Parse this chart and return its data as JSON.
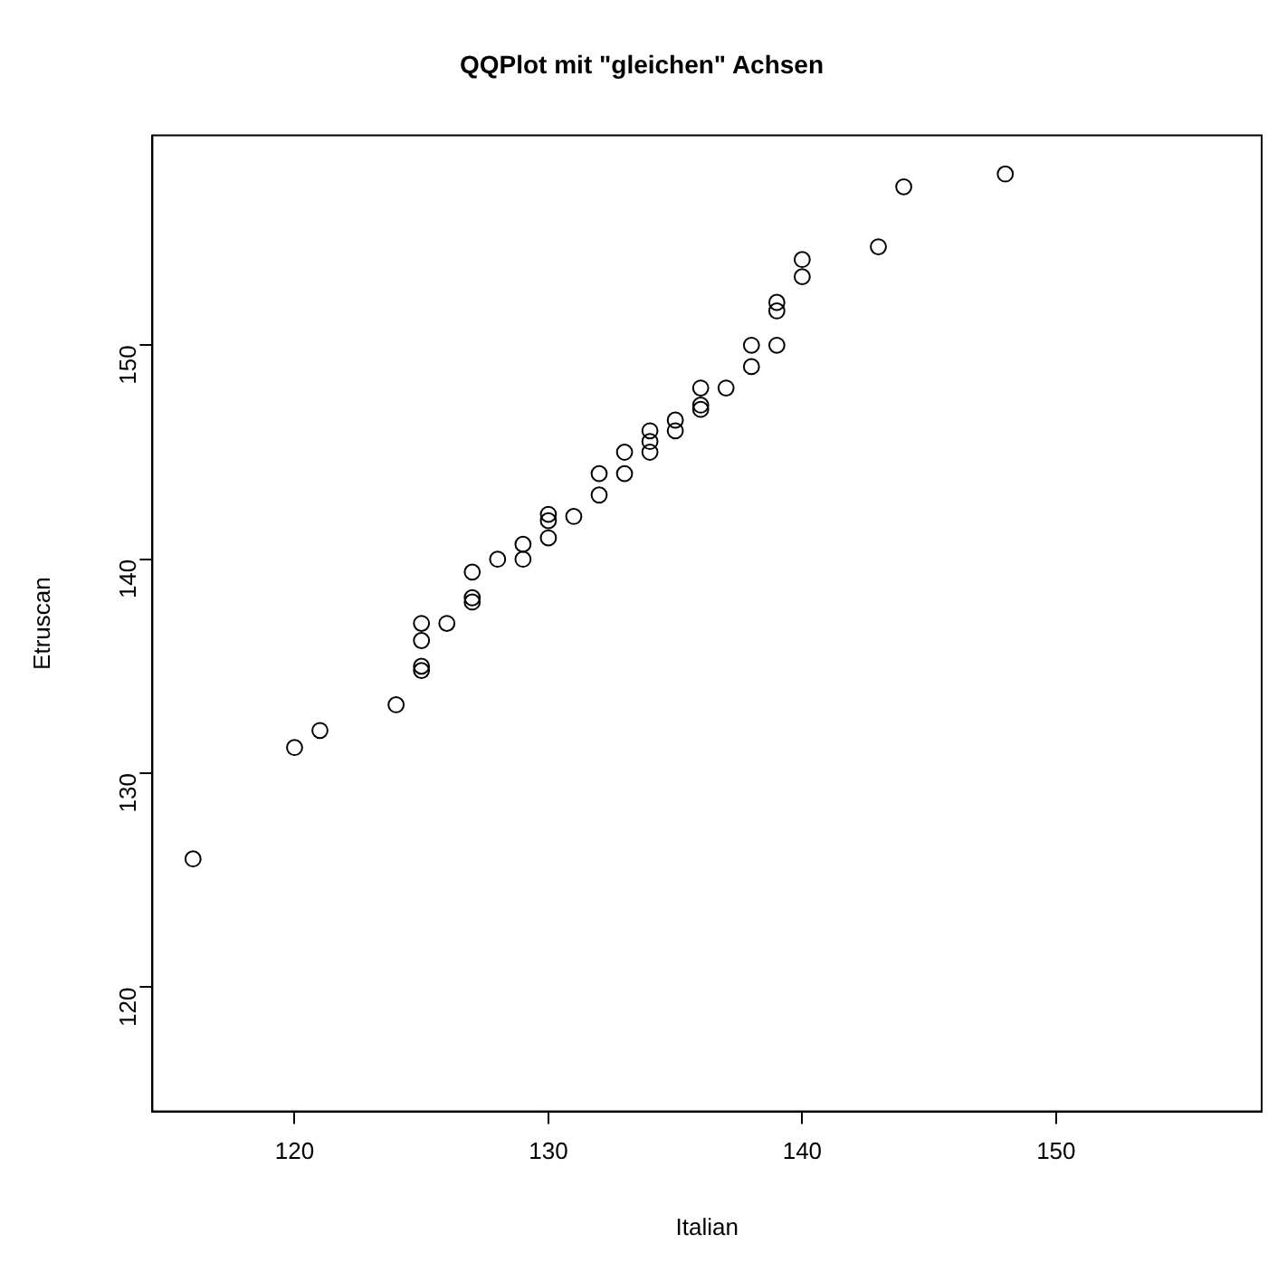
{
  "chart_data": {
    "type": "scatter",
    "title": "QQPlot mit \"gleichen\" Achsen",
    "xlabel": "Italian",
    "ylabel": "Etruscan",
    "series": [
      {
        "color": "#000000",
        "x": [
          116,
          120,
          121,
          124,
          125,
          125,
          125,
          125,
          126,
          127,
          127,
          127,
          128,
          129,
          129,
          130,
          130,
          130,
          131,
          132,
          132,
          133,
          133,
          134,
          134,
          134,
          135,
          135,
          136,
          136,
          136,
          137,
          138,
          138,
          139,
          139,
          139,
          140,
          140,
          143,
          144,
          148
        ],
        "values": [
          126,
          131.2,
          132,
          133.2,
          134.8,
          135,
          136.2,
          137,
          137,
          138,
          138.2,
          139.4,
          140,
          140,
          140.7,
          141,
          141.8,
          142.1,
          142,
          143,
          144,
          144,
          145,
          145,
          145.5,
          146,
          146,
          146.5,
          147,
          147.2,
          148,
          148,
          149,
          150,
          150,
          151.6,
          152,
          153.2,
          154,
          154.6,
          157.4,
          158
        ]
      }
    ],
    "xlim": [
      114.4,
      158.1
    ],
    "ylim": [
      114.2,
      159.8
    ],
    "xticks": [
      120,
      130,
      140,
      150
    ],
    "yticks": [
      120,
      130,
      140,
      150
    ],
    "marker": "circle",
    "grid": false,
    "legend": false
  }
}
